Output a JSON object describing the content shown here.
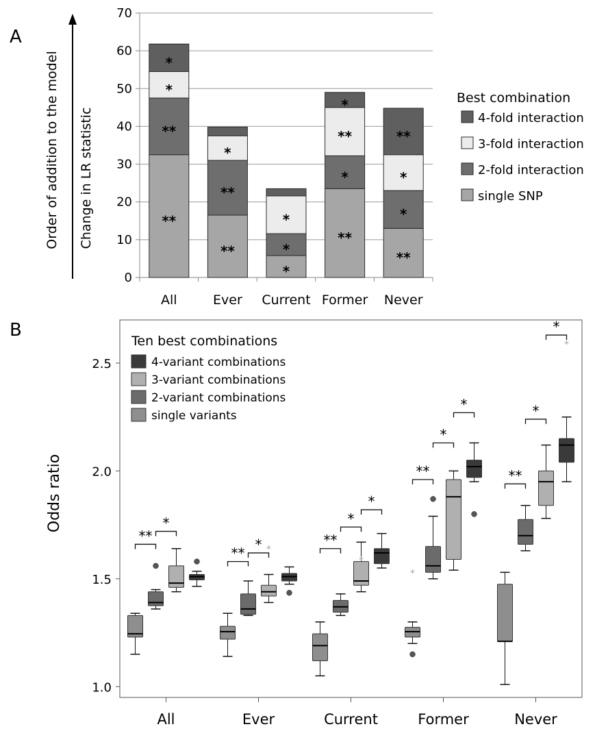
{
  "panelA": {
    "letter": "A",
    "arrow_label": "Order of addition to the model",
    "ylabel": "Change in LR statistic",
    "ylim": [
      0,
      70
    ],
    "yticks": [
      "0",
      "10",
      "20",
      "30",
      "40",
      "50",
      "60",
      "70"
    ],
    "legend_title": "Best combination",
    "legend": [
      {
        "label": "4-fold interaction",
        "color": "#5f5f5f"
      },
      {
        "label": "3-fold interaction",
        "color": "#ececec"
      },
      {
        "label": "2-fold interaction",
        "color": "#6e6e6e"
      },
      {
        "label": "single SNP",
        "color": "#a6a6a6"
      }
    ]
  },
  "panelB": {
    "letter": "B",
    "ylabel": "Odds ratio",
    "ylim": [
      0.95,
      2.7
    ],
    "yticks": [
      "1.0",
      "1.5",
      "2.0",
      "2.5"
    ],
    "legend_title": "Ten best combinations",
    "legend": [
      {
        "label": "4-variant combinations",
        "color": "#3a3a3a"
      },
      {
        "label": "3-variant combinations",
        "color": "#b0b0b0"
      },
      {
        "label": "2-variant combinations",
        "color": "#6b6b6b"
      },
      {
        "label": "single variants",
        "color": "#8e8e8e"
      }
    ]
  },
  "chart_data": [
    {
      "type": "bar",
      "stacked": true,
      "categories": [
        "All",
        "Ever",
        "Current",
        "Former",
        "Never"
      ],
      "series": [
        {
          "name": "single SNP",
          "color": "#a6a6a6",
          "values": [
            32.5,
            16.5,
            5.8,
            23.5,
            13
          ],
          "labels": [
            "**",
            "**",
            "*",
            "**",
            "**"
          ]
        },
        {
          "name": "2-fold interaction",
          "color": "#6e6e6e",
          "values": [
            15,
            14.5,
            5.8,
            8.7,
            10
          ],
          "labels": [
            "**",
            "**",
            "*",
            "*",
            "*"
          ]
        },
        {
          "name": "3-fold interaction",
          "color": "#ececec",
          "values": [
            7,
            6.5,
            10,
            12.8,
            9.5
          ],
          "labels": [
            "*",
            "*",
            "*",
            "**",
            "*"
          ]
        },
        {
          "name": "4-fold interaction",
          "color": "#5f5f5f",
          "values": [
            7.3,
            2.3,
            1.9,
            4,
            12.3
          ],
          "labels": [
            "*",
            "",
            "",
            "*",
            "**"
          ]
        }
      ],
      "ylabel": "Change in LR statistic",
      "ylim": [
        0,
        70
      ],
      "grid": true,
      "legend_position": "right"
    },
    {
      "type": "box",
      "categories": [
        "All",
        "Ever",
        "Current",
        "Former",
        "Never"
      ],
      "ylabel": "Odds ratio",
      "ylim": [
        0.95,
        2.7
      ],
      "series_order": [
        "single variants",
        "2-variant combinations",
        "3-variant combinations",
        "4-variant combinations"
      ],
      "groups": [
        {
          "category": "All",
          "boxes": [
            {
              "series": "single variants",
              "min": 1.15,
              "q1": 1.23,
              "median": 1.245,
              "q3": 1.33,
              "max": 1.34,
              "outliers": []
            },
            {
              "series": "2-variant combinations",
              "min": 1.36,
              "q1": 1.375,
              "median": 1.39,
              "q3": 1.44,
              "max": 1.45,
              "outliers": [
                {
                  "v": 1.56,
                  "shape": "dot"
                }
              ]
            },
            {
              "series": "3-variant combinations",
              "min": 1.44,
              "q1": 1.46,
              "median": 1.48,
              "q3": 1.56,
              "max": 1.64,
              "outliers": []
            },
            {
              "series": "4-variant combinations",
              "min": 1.465,
              "q1": 1.495,
              "median": 1.51,
              "q3": 1.52,
              "max": 1.535,
              "outliers": [
                {
                  "v": 1.58,
                  "shape": "dot"
                }
              ]
            }
          ]
        },
        {
          "category": "Ever",
          "boxes": [
            {
              "series": "single variants",
              "min": 1.14,
              "q1": 1.22,
              "median": 1.255,
              "q3": 1.28,
              "max": 1.34,
              "outliers": []
            },
            {
              "series": "2-variant combinations",
              "min": 1.33,
              "q1": 1.335,
              "median": 1.36,
              "q3": 1.43,
              "max": 1.49,
              "outliers": []
            },
            {
              "series": "3-variant combinations",
              "min": 1.39,
              "q1": 1.42,
              "median": 1.44,
              "q3": 1.47,
              "max": 1.52,
              "outliers": [
                {
                  "v": 1.64,
                  "shape": "star"
                }
              ]
            },
            {
              "series": "4-variant combinations",
              "min": 1.475,
              "q1": 1.49,
              "median": 1.51,
              "q3": 1.525,
              "max": 1.555,
              "outliers": [
                {
                  "v": 1.435,
                  "shape": "dot"
                }
              ]
            }
          ]
        },
        {
          "category": "Current",
          "boxes": [
            {
              "series": "single variants",
              "min": 1.05,
              "q1": 1.12,
              "median": 1.19,
              "q3": 1.245,
              "max": 1.3,
              "outliers": []
            },
            {
              "series": "2-variant combinations",
              "min": 1.33,
              "q1": 1.345,
              "median": 1.37,
              "q3": 1.4,
              "max": 1.43,
              "outliers": []
            },
            {
              "series": "3-variant combinations",
              "min": 1.44,
              "q1": 1.47,
              "median": 1.49,
              "q3": 1.58,
              "max": 1.67,
              "outliers": [
                {
                  "v": 1.59,
                  "shape": "star"
                }
              ]
            },
            {
              "series": "4-variant combinations",
              "min": 1.55,
              "q1": 1.57,
              "median": 1.62,
              "q3": 1.64,
              "max": 1.71,
              "outliers": []
            }
          ]
        },
        {
          "category": "Former",
          "boxes": [
            {
              "series": "single variants",
              "min": 1.2,
              "q1": 1.23,
              "median": 1.255,
              "q3": 1.275,
              "max": 1.3,
              "outliers": [
                {
                  "v": 1.15,
                  "shape": "dot"
                },
                {
                  "v": 1.53,
                  "shape": "star"
                }
              ]
            },
            {
              "series": "2-variant combinations",
              "min": 1.5,
              "q1": 1.53,
              "median": 1.56,
              "q3": 1.65,
              "max": 1.79,
              "outliers": [
                {
                  "v": 1.87,
                  "shape": "dot"
                }
              ]
            },
            {
              "series": "3-variant combinations",
              "min": 1.54,
              "q1": 1.59,
              "median": 1.88,
              "q3": 1.96,
              "max": 2.0,
              "outliers": []
            },
            {
              "series": "4-variant combinations",
              "min": 1.95,
              "q1": 1.97,
              "median": 2.02,
              "q3": 2.05,
              "max": 2.13,
              "outliers": [
                {
                  "v": 1.8,
                  "shape": "dot"
                }
              ]
            }
          ]
        },
        {
          "category": "Never",
          "boxes": [
            {
              "series": "single variants",
              "min": 1.01,
              "q1": 1.21,
              "median": 1.21,
              "q3": 1.475,
              "max": 1.53,
              "outliers": []
            },
            {
              "series": "2-variant combinations",
              "min": 1.63,
              "q1": 1.66,
              "median": 1.7,
              "q3": 1.775,
              "max": 1.84,
              "outliers": []
            },
            {
              "series": "3-variant combinations",
              "min": 1.78,
              "q1": 1.84,
              "median": 1.95,
              "q3": 2.0,
              "max": 2.12,
              "outliers": []
            },
            {
              "series": "4-variant combinations",
              "min": 1.95,
              "q1": 2.04,
              "median": 2.12,
              "q3": 2.15,
              "max": 2.25,
              "outliers": [
                {
                  "v": 2.59,
                  "shape": "star"
                }
              ]
            }
          ]
        }
      ],
      "significance_brackets": [
        {
          "category": "All",
          "from": 0,
          "to": 1,
          "label": "**",
          "y": 1.66
        },
        {
          "category": "All",
          "from": 1,
          "to": 2,
          "label": "*",
          "y": 1.72
        },
        {
          "category": "Ever",
          "from": 0,
          "to": 1,
          "label": "**",
          "y": 1.58
        },
        {
          "category": "Ever",
          "from": 1,
          "to": 2,
          "label": "*",
          "y": 1.62
        },
        {
          "category": "Current",
          "from": 0,
          "to": 1,
          "label": "**",
          "y": 1.64
        },
        {
          "category": "Current",
          "from": 1,
          "to": 2,
          "label": "*",
          "y": 1.74
        },
        {
          "category": "Current",
          "from": 2,
          "to": 3,
          "label": "*",
          "y": 1.82
        },
        {
          "category": "Former",
          "from": 0,
          "to": 1,
          "label": "**",
          "y": 1.96
        },
        {
          "category": "Former",
          "from": 1,
          "to": 2,
          "label": "*",
          "y": 2.13
        },
        {
          "category": "Former",
          "from": 2,
          "to": 3,
          "label": "*",
          "y": 2.27
        },
        {
          "category": "Never",
          "from": 0,
          "to": 1,
          "label": "**",
          "y": 1.94
        },
        {
          "category": "Never",
          "from": 1,
          "to": 2,
          "label": "*",
          "y": 2.24
        },
        {
          "category": "Never",
          "from": 2,
          "to": 3,
          "label": "*",
          "y": 2.63
        }
      ],
      "grid": false,
      "legend_position": "top-left"
    }
  ]
}
